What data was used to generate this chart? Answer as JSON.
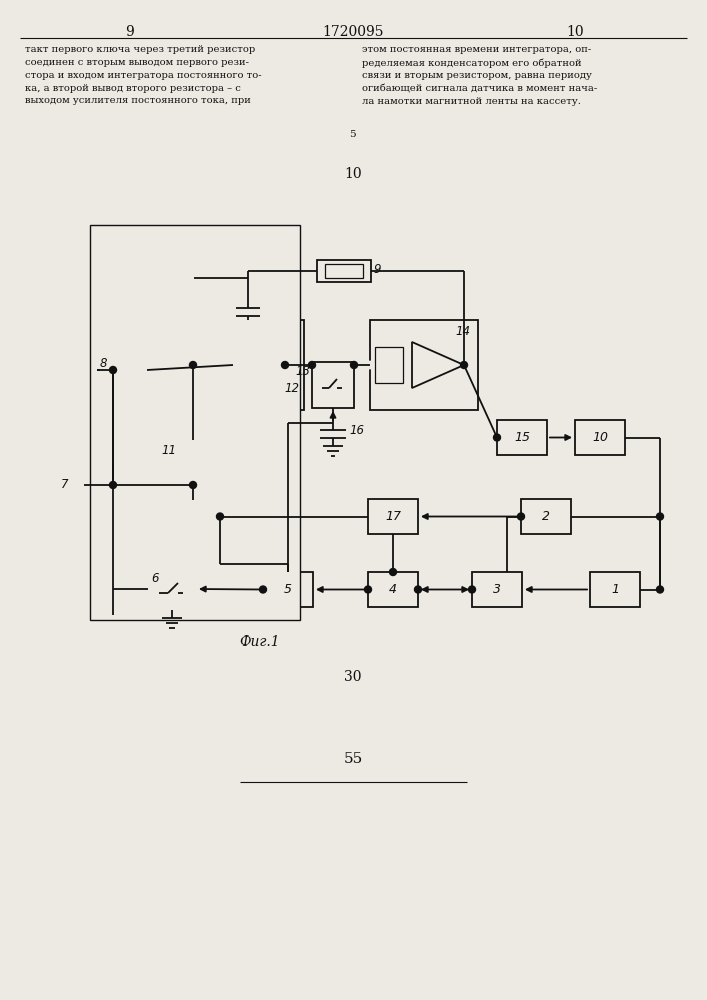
{
  "title_top_left": "9",
  "title_top_center": "1720095",
  "title_top_right": "10",
  "text_left": "такт первого ключа через третий резистор\nсоединен с вторым выводом первого рези-\nстора и входом интегратора постоянного то-\nка, а второй вывод второго резистора – с\nвыходом усилителя постоянного тока, при",
  "text_right": "этом постоянная времени интегратора, оп-\nределяемая конденсатором его обратной\nсвязи и вторым резистором, равна периоду\nогибающей сигнала датчика в момент нача-\nла намотки магнитной ленты на кассету.",
  "fig_label": "Фиг.1",
  "page_bottom_1": "30",
  "page_bottom_2": "55",
  "bg_color": "#ede9e3",
  "line_color": "#111111"
}
